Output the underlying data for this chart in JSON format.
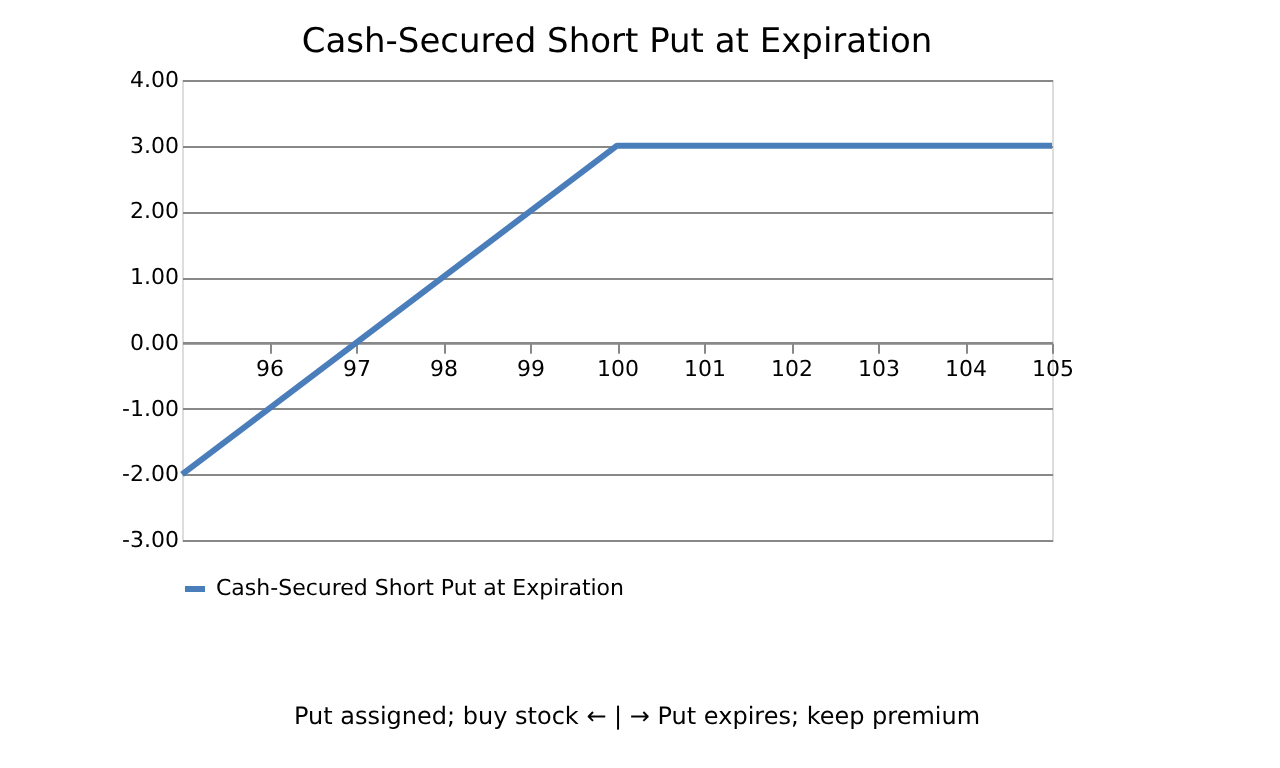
{
  "chart_data": {
    "type": "line",
    "title": "Cash-Secured Short Put at Expiration",
    "x": [
      95,
      100,
      105
    ],
    "series": [
      {
        "name": "Cash-Secured Short Put at Expiration",
        "color": "#4a7ebb",
        "values": [
          -2,
          3,
          3
        ]
      }
    ],
    "xlim": [
      95,
      105
    ],
    "xticks": [
      96,
      97,
      98,
      99,
      100,
      101,
      102,
      103,
      104,
      105
    ],
    "ylim": [
      -3,
      4
    ],
    "yticks": [
      {
        "value": -3,
        "label": "-3.00"
      },
      {
        "value": -2,
        "label": "-2.00"
      },
      {
        "value": -1,
        "label": "-1.00"
      },
      {
        "value": 0,
        "label": "0.00"
      },
      {
        "value": 1,
        "label": "1.00"
      },
      {
        "value": 2,
        "label": "2.00"
      },
      {
        "value": 3,
        "label": "3.00"
      },
      {
        "value": 4,
        "label": "4.00"
      }
    ],
    "grid": "y",
    "legend": "bottom",
    "marker": "none",
    "line_style": "solid",
    "annotations": [
      "Put assigned; buy stock  ←   |   →  Put expires; keep premium"
    ]
  }
}
